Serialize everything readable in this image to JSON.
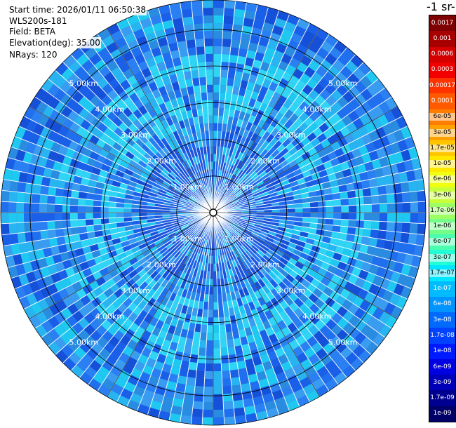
{
  "info": {
    "start_time": "Start time: 2026/01/11 06:50:38",
    "instrument": "WLS200s-181",
    "field": "Field: BETA",
    "elevation": "Elevation(deg): 35.00",
    "nrays": "NRays: 120"
  },
  "colorbar": {
    "title": "-1 sr-",
    "labels": [
      "0.0017",
      "0.001",
      "0.0006",
      "0.0003",
      "0.00017",
      "0.0001",
      "6e-05",
      "3e-05",
      "1.7e-05",
      "1e-05",
      "6e-06",
      "3e-06",
      "1.7e-06",
      "1e-06",
      "6e-07",
      "3e-07",
      "1.7e-07",
      "1e-07",
      "6e-08",
      "3e-08",
      "1.7e-08",
      "1e-08",
      "6e-09",
      "3e-09",
      "1.7e-09",
      "1e-09"
    ],
    "colors": [
      "#7f0000",
      "#a80000",
      "#d40000",
      "#f20000",
      "#ff3300",
      "#ff5a00",
      "#ff7e00",
      "#ffa200",
      "#ffc600",
      "#ffe800",
      "#f0ff10",
      "#c8ff38",
      "#9cff62",
      "#74ff88",
      "#4affb0",
      "#22ffd6",
      "#00e6ff",
      "#00bcff",
      "#0094ff",
      "#006aff",
      "#0042ff",
      "#001aff",
      "#0000e0",
      "#0000b8",
      "#000090",
      "#000068"
    ]
  },
  "range_rings": [
    {
      "label": "1.00km",
      "km": 1
    },
    {
      "label": "2.00km",
      "km": 2
    },
    {
      "label": "3.00km",
      "km": 3
    },
    {
      "label": "4.00km",
      "km": 4
    },
    {
      "label": "5.00km",
      "km": 5
    }
  ],
  "ppi": {
    "max_range_km": 5.8,
    "n_rays": 120,
    "palette": [
      "#1a5fe8",
      "#2a80f2",
      "#1f6fee",
      "#3a9cf0",
      "#28b4f0",
      "#1fc8f0",
      "#1550d8",
      "#2a8ce0"
    ]
  }
}
